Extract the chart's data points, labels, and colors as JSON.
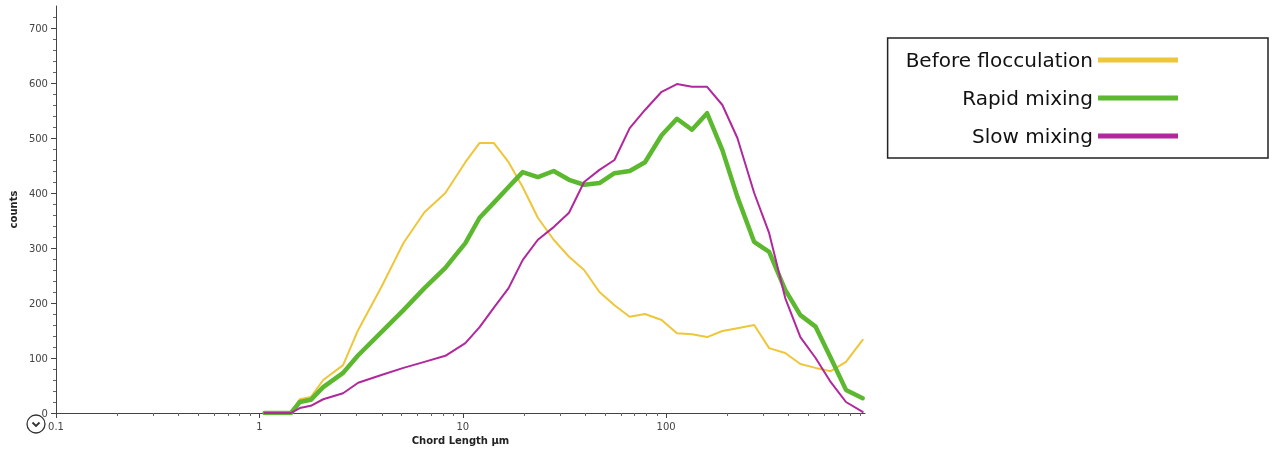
{
  "chart_data": {
    "type": "line",
    "xlabel": "Chord Length µm",
    "ylabel": "counts",
    "log": "x",
    "grid": false,
    "marker": "none",
    "line_style": "solid",
    "legend": "top right",
    "xlim": [
      0.1,
      950
    ],
    "xticks": [
      0.1,
      1,
      10,
      100
    ],
    "ylim": [
      0,
      740
    ],
    "yticks": [
      0,
      100,
      200,
      300,
      400,
      500,
      600,
      700
    ],
    "x": [
      1.06,
      1.23,
      1.43,
      1.58,
      1.79,
      2.06,
      2.58,
      3.06,
      3.98,
      5.11,
      6.48,
      8.21,
      10.3,
      12.1,
      14.2,
      16.8,
      19.7,
      23.4,
      28,
      33.3,
      39.5,
      47,
      55.7,
      66.2,
      78.7,
      95,
      113,
      134,
      159,
      189,
      224,
      271,
      321,
      385,
      457,
      543,
      645,
      766,
      925
    ],
    "series": [
      {
        "name": "Before flocculation",
        "color": "#eec63a",
        "values": [
          null,
          null,
          0,
          25,
          29,
          60,
          87,
          151,
          229,
          309,
          365,
          400,
          456,
          491,
          491,
          456,
          411,
          355,
          315,
          284,
          260,
          220,
          196,
          175,
          180,
          169,
          145,
          143,
          138,
          149,
          154,
          160,
          118,
          109,
          89,
          82,
          76,
          93,
          133
        ]
      },
      {
        "name": "Rapid mixing",
        "color": "#5cb82e",
        "values": [
          0,
          0,
          0,
          20,
          24,
          47,
          73,
          105,
          147,
          187,
          227,
          264,
          309,
          355,
          382,
          411,
          438,
          429,
          440,
          424,
          415,
          418,
          436,
          440,
          456,
          505,
          535,
          515,
          545,
          478,
          393,
          311,
          293,
          224,
          178,
          157,
          100,
          42,
          27
        ]
      },
      {
        "name": "Slow mixing",
        "color": "#b0289c",
        "values": [
          0,
          0,
          0,
          9,
          13,
          25,
          36,
          55,
          69,
          82,
          93,
          104,
          127,
          156,
          191,
          227,
          278,
          315,
          338,
          364,
          420,
          442,
          460,
          518,
          551,
          584,
          598,
          593,
          593,
          560,
          500,
          400,
          327,
          209,
          138,
          100,
          56,
          20,
          2
        ]
      }
    ]
  }
}
